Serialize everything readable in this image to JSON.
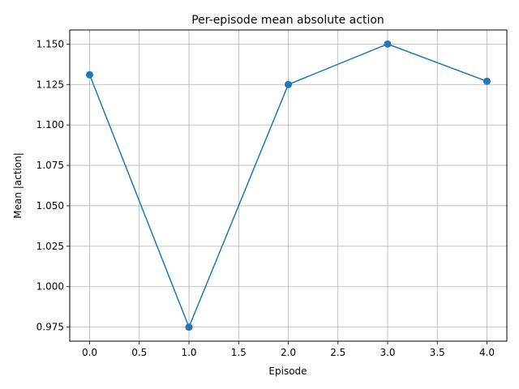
{
  "chart_data": {
    "type": "line",
    "title": "Per-episode mean absolute action",
    "xlabel": "Episode",
    "ylabel": "Mean |action|",
    "x": [
      0,
      1,
      2,
      3,
      4
    ],
    "series": [
      {
        "values": [
          1.131,
          0.975,
          1.125,
          1.15,
          1.127
        ],
        "color": "#1f77b4",
        "marker": "circle"
      }
    ],
    "xlim": [
      -0.2,
      4.2
    ],
    "ylim": [
      0.9663,
      1.1587
    ],
    "xticks": [
      0.0,
      0.5,
      1.0,
      1.5,
      2.0,
      2.5,
      3.0,
      3.5,
      4.0
    ],
    "xtick_labels": [
      "0.0",
      "0.5",
      "1.0",
      "1.5",
      "2.0",
      "2.5",
      "3.0",
      "3.5",
      "4.0"
    ],
    "yticks": [
      0.975,
      1.0,
      1.025,
      1.05,
      1.075,
      1.1,
      1.125,
      1.15
    ],
    "ytick_labels": [
      "0.975",
      "1.000",
      "1.025",
      "1.050",
      "1.075",
      "1.100",
      "1.125",
      "1.150"
    ],
    "grid": true,
    "grid_color": "#b0b0b0"
  }
}
